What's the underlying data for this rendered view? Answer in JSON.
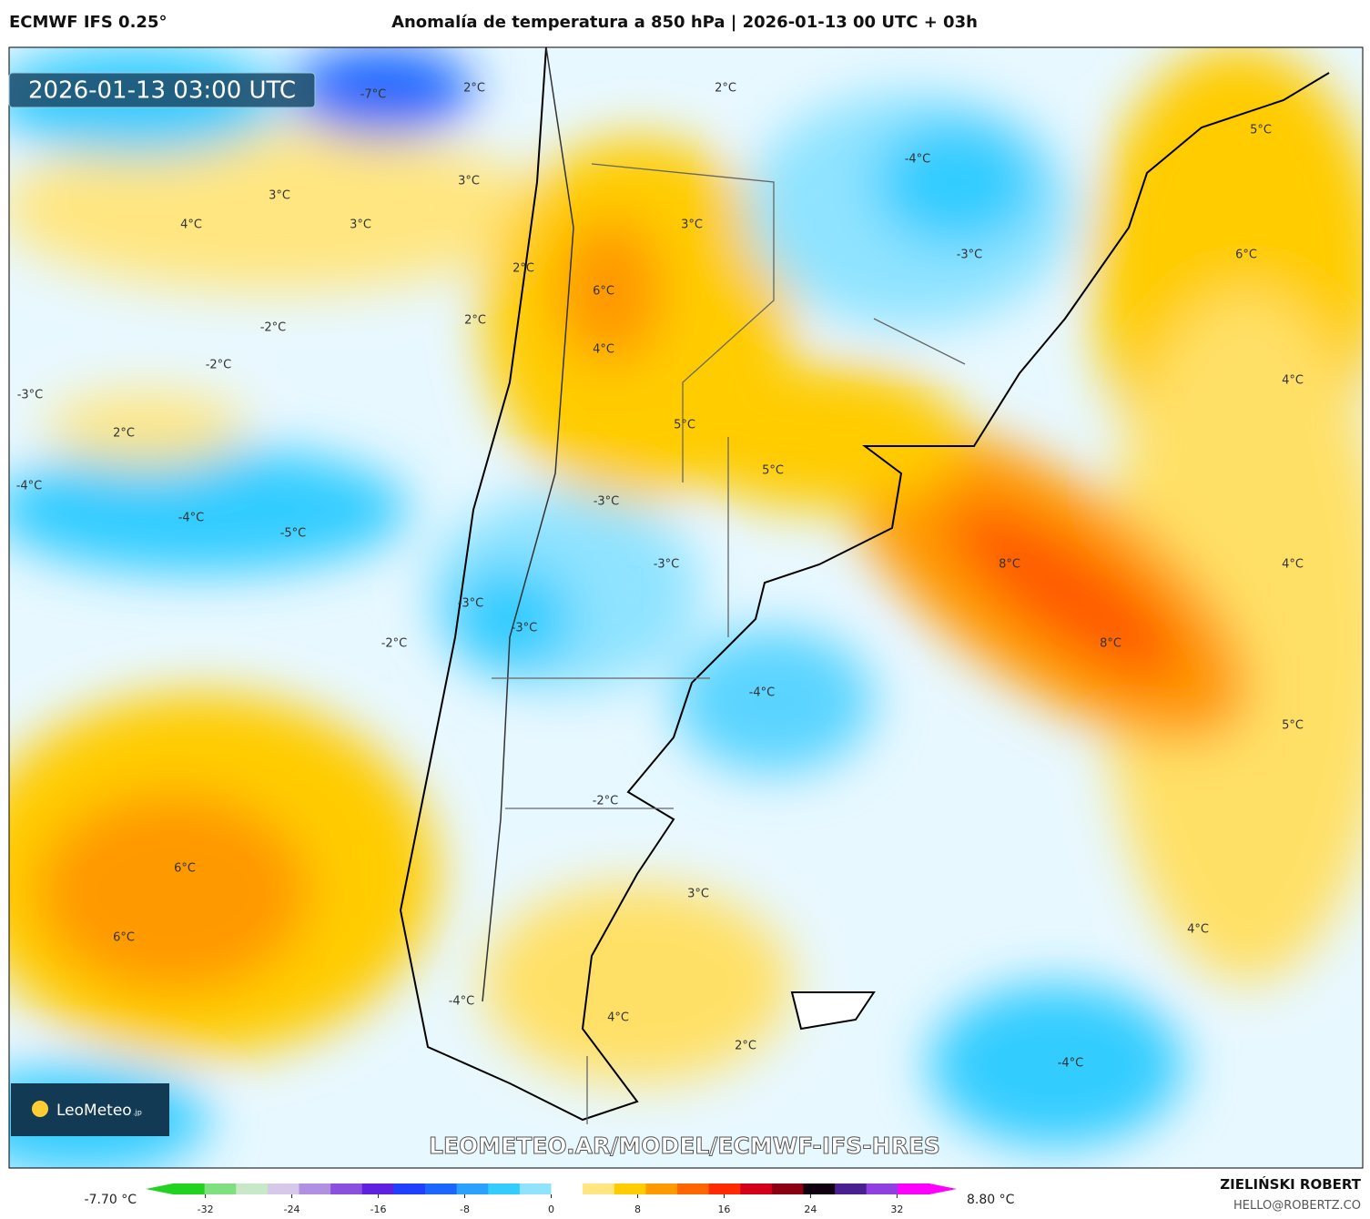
{
  "header": {
    "model": "ECMWF IFS 0.25°",
    "title": "Anomalía de temperatura a 850 hPa | 2026-01-13 00 UTC + 03h"
  },
  "timestamp": "2026-01-13 03:00 UTC",
  "logo": {
    "name": "LeoMeteo",
    "suffix": ".jp"
  },
  "watermark": "LEOMETEO.AR/MODEL/ECMWF-IFS-HRES",
  "contour_labels": [
    "-7°C",
    "2°C",
    "2°C",
    "-4°C",
    "5°C",
    "3°C",
    "3°C",
    "4°C",
    "3°C",
    "3°C",
    "-3°C",
    "6°C",
    "2°C",
    "6°C",
    "-2°C",
    "2°C",
    "4°C",
    "-2°C",
    "4°C",
    "-3°C",
    "5°C",
    "2°C",
    "5°C",
    "-4°C",
    "-3°C",
    "-4°C",
    "-5°C",
    "8°C",
    "-3°C",
    "4°C",
    "-3°C",
    "-3°C",
    "-2°C",
    "8°C",
    "-4°C",
    "5°C",
    "-2°C",
    "6°C",
    "3°C",
    "4°C",
    "6°C",
    "-4°C",
    "4°C",
    "2°C",
    "-4°C"
  ],
  "colorbar": {
    "min_label": "-7.70 °C",
    "max_label": "8.80 °C",
    "xlim": [
      -35,
      35
    ],
    "xticks": [
      -32,
      -24,
      -16,
      -8,
      0,
      8,
      16,
      24,
      32
    ],
    "colors": [
      "#1fd31f",
      "#7fe07f",
      "#c8e8c8",
      "#d6c8e8",
      "#b090e0",
      "#8a50e0",
      "#6020e0",
      "#2040ff",
      "#1a66ff",
      "#2aa0ff",
      "#33ccff",
      "#8fe3ff",
      "#ffffff",
      "#ffe680",
      "#ffcc00",
      "#ff9900",
      "#ff6600",
      "#ff2a00",
      "#d4001a",
      "#8a0010",
      "#100010",
      "#4a2090",
      "#9040e0",
      "#ff00ff"
    ]
  },
  "credits": {
    "author": "ZIELIŃSKI ROBERT",
    "email": "HELLO@ROBERTZ.CO"
  }
}
